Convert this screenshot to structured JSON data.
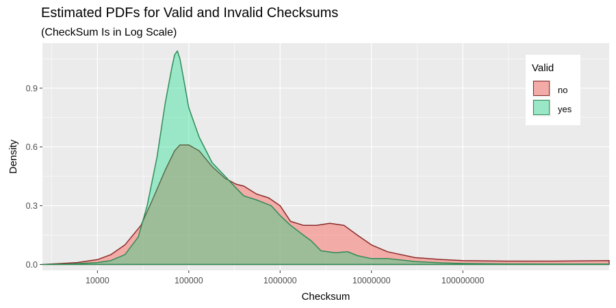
{
  "chart_data": {
    "type": "area",
    "title": "Estimated PDFs for Valid and Invalid Checksums",
    "subtitle": "(CheckSum Is in Log Scale)",
    "xlabel": "Checksum",
    "ylabel": "Density",
    "x_scale": "log10",
    "xlim": [
      2500,
      4000000000
    ],
    "ylim": [
      -0.03,
      1.13
    ],
    "x_ticks": [
      {
        "value": 10000,
        "label": "10000"
      },
      {
        "value": 100000,
        "label": "100000"
      },
      {
        "value": 1000000,
        "label": "1000000"
      },
      {
        "value": 10000000,
        "label": "10000000"
      },
      {
        "value": 100000000,
        "label": "100000000"
      }
    ],
    "y_ticks": [
      {
        "value": 0,
        "label": "0.0"
      },
      {
        "value": 0.3,
        "label": "0.3"
      },
      {
        "value": 0.6,
        "label": "0.6"
      },
      {
        "value": 0.9,
        "label": "0.9"
      }
    ],
    "grid": true,
    "legend": {
      "title": "Valid",
      "position": "top-right"
    },
    "series": [
      {
        "name": "no",
        "fill": "#f8766d",
        "stroke": "#8b2a2a",
        "x": [
          2500,
          4000,
          6000,
          10000,
          14000,
          20000,
          30000,
          40000,
          55000,
          70000,
          80000,
          100000,
          130000,
          180000,
          250000,
          330000,
          400000,
          550000,
          750000,
          1000000,
          1300000,
          1800000,
          2500000,
          3500000,
          5000000,
          7000000,
          10000000,
          15000000,
          30000000,
          60000000,
          100000000,
          300000000,
          1000000000,
          4000000000
        ],
        "y": [
          0.0,
          0.005,
          0.01,
          0.025,
          0.05,
          0.1,
          0.2,
          0.33,
          0.48,
          0.58,
          0.61,
          0.61,
          0.58,
          0.5,
          0.44,
          0.41,
          0.4,
          0.36,
          0.34,
          0.3,
          0.22,
          0.2,
          0.2,
          0.21,
          0.2,
          0.15,
          0.1,
          0.065,
          0.035,
          0.025,
          0.02,
          0.017,
          0.017,
          0.02
        ]
      },
      {
        "name": "yes",
        "fill": "#00e080",
        "stroke": "#2e8b57",
        "x": [
          2500,
          5000,
          10000,
          14000,
          20000,
          28000,
          35000,
          45000,
          55000,
          65000,
          70000,
          75000,
          80000,
          90000,
          100000,
          130000,
          180000,
          250000,
          330000,
          400000,
          550000,
          800000,
          1000000,
          1300000,
          1800000,
          2200000,
          2800000,
          4000000,
          5500000,
          7000000,
          10000000,
          15000000,
          30000000,
          60000000,
          100000000,
          300000000,
          1000000000,
          4000000000
        ],
        "y": [
          0.0,
          0.002,
          0.01,
          0.02,
          0.05,
          0.14,
          0.3,
          0.55,
          0.82,
          1.0,
          1.07,
          1.09,
          1.05,
          0.92,
          0.8,
          0.65,
          0.52,
          0.45,
          0.39,
          0.35,
          0.33,
          0.3,
          0.25,
          0.2,
          0.15,
          0.12,
          0.07,
          0.06,
          0.065,
          0.045,
          0.03,
          0.03,
          0.015,
          0.008,
          0.005,
          0.003,
          0.002,
          0.002
        ]
      }
    ]
  }
}
